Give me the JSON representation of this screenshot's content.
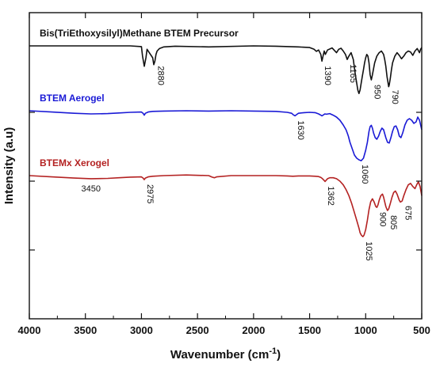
{
  "chart_data": {
    "type": "line",
    "xlabel": "Wavenumber (cm",
    "xlabel_sup": "-1",
    "xlabel_tail": ")",
    "ylabel": "Intensity (a.u)",
    "xlim": [
      4000,
      500
    ],
    "x_reversed": true,
    "xticks": [
      4000,
      3500,
      3000,
      2500,
      2000,
      1500,
      1000,
      500
    ],
    "grid": false,
    "series": [
      {
        "name": "Bis(TriEthoxysilyl)Methane BTEM Precursor",
        "color": "#111111",
        "x": [
          4000,
          3500,
          3100,
          3000,
          2990,
          2975,
          2960,
          2950,
          2930,
          2900,
          2890,
          2880,
          2870,
          2860,
          2840,
          2800,
          2700,
          2400,
          2000,
          1800,
          1600,
          1500,
          1460,
          1440,
          1420,
          1400,
          1390,
          1380,
          1370,
          1360,
          1340,
          1300,
          1260,
          1240,
          1220,
          1200,
          1180,
          1165,
          1150,
          1130,
          1110,
          1100,
          1090,
          1080,
          1070,
          1060,
          1050,
          1040,
          1030,
          1020,
          1010,
          1000,
          990,
          980,
          970,
          960,
          950,
          940,
          920,
          900,
          880,
          860,
          850,
          840,
          830,
          820,
          810,
          800,
          795,
          790,
          780,
          770,
          760,
          740,
          720,
          700,
          680,
          660,
          640,
          620,
          600,
          580,
          560,
          540,
          520,
          510,
          500
        ],
        "y": [
          0.0,
          0.0,
          0.0,
          0.2,
          3.0,
          6.0,
          3.5,
          1.0,
          2.0,
          3.5,
          5.5,
          4.5,
          2.5,
          1.5,
          0.8,
          0.3,
          0.1,
          0.3,
          0.0,
          0.1,
          0.3,
          0.5,
          1.0,
          1.6,
          1.2,
          2.5,
          4.5,
          3.0,
          1.5,
          2.5,
          1.2,
          0.6,
          2.0,
          1.0,
          0.7,
          1.5,
          2.5,
          4.0,
          3.0,
          2.0,
          4.0,
          6.5,
          9.0,
          11.0,
          13.0,
          14.0,
          13.0,
          11.0,
          9.0,
          7.0,
          5.0,
          3.5,
          2.5,
          3.0,
          5.0,
          8.5,
          10.0,
          8.5,
          5.0,
          3.0,
          2.0,
          1.5,
          2.0,
          2.5,
          4.0,
          6.0,
          9.0,
          11.0,
          12.0,
          11.5,
          9.5,
          7.0,
          5.0,
          3.0,
          2.0,
          2.8,
          3.8,
          3.0,
          2.0,
          1.5,
          1.8,
          2.8,
          1.5,
          0.8,
          2.0,
          1.0,
          0.5
        ]
      },
      {
        "name": "BTEM Aerogel",
        "color": "#1a1ad6",
        "x": [
          4000,
          3800,
          3600,
          3450,
          3300,
          3200,
          3100,
          3000,
          2985,
          2975,
          2965,
          2940,
          2900,
          2800,
          2600,
          2400,
          2200,
          2000,
          1800,
          1700,
          1660,
          1645,
          1630,
          1615,
          1600,
          1550,
          1500,
          1450,
          1420,
          1400,
          1390,
          1380,
          1365,
          1350,
          1320,
          1290,
          1260,
          1230,
          1200,
          1175,
          1165,
          1155,
          1140,
          1120,
          1100,
          1080,
          1060,
          1040,
          1020,
          1000,
          985,
          970,
          960,
          950,
          940,
          930,
          915,
          900,
          885,
          870,
          855,
          840,
          820,
          805,
          790,
          775,
          760,
          745,
          730,
          715,
          700,
          685,
          670,
          650,
          630,
          610,
          590,
          570,
          550,
          535,
          520,
          510,
          500
        ],
        "y": [
          0.0,
          0.4,
          0.8,
          1.0,
          0.9,
          0.7,
          0.5,
          0.4,
          0.8,
          1.4,
          0.8,
          0.4,
          0.2,
          0.1,
          0.0,
          0.1,
          0.0,
          0.1,
          0.2,
          0.5,
          0.8,
          1.3,
          1.6,
          1.2,
          0.8,
          0.6,
          0.5,
          0.6,
          1.0,
          1.4,
          1.6,
          1.4,
          1.0,
          1.1,
          0.9,
          1.4,
          2.0,
          3.0,
          4.5,
          6.0,
          7.0,
          8.0,
          10.0,
          12.0,
          14.0,
          15.0,
          15.5,
          15.8,
          15.0,
          12.5,
          10.0,
          6.5,
          5.0,
          4.6,
          5.5,
          7.0,
          8.5,
          9.0,
          8.0,
          6.5,
          5.5,
          6.0,
          8.5,
          10.0,
          10.2,
          8.5,
          6.5,
          5.0,
          4.8,
          6.0,
          8.0,
          8.5,
          7.0,
          4.5,
          3.0,
          2.5,
          3.0,
          4.0,
          3.5,
          2.0,
          3.0,
          4.5,
          6.0
        ]
      },
      {
        "name": "BTEMx Xerogel",
        "color": "#b42222",
        "x": [
          4000,
          3800,
          3600,
          3450,
          3300,
          3200,
          3100,
          3000,
          2985,
          2975,
          2965,
          2940,
          2900,
          2800,
          2600,
          2400,
          2370,
          2350,
          2330,
          2200,
          2000,
          1800,
          1700,
          1650,
          1600,
          1500,
          1450,
          1420,
          1400,
          1385,
          1370,
          1362,
          1355,
          1340,
          1320,
          1290,
          1260,
          1230,
          1200,
          1175,
          1150,
          1125,
          1100,
          1080,
          1060,
          1050,
          1040,
          1030,
          1025,
          1015,
          1000,
          985,
          970,
          955,
          940,
          925,
          910,
          900,
          890,
          880,
          865,
          850,
          840,
          830,
          820,
          810,
          805,
          795,
          780,
          765,
          750,
          735,
          720,
          710,
          700,
          690,
          675,
          660,
          640,
          620,
          600,
          580,
          560,
          545,
          530,
          515,
          505,
          500
        ],
        "y": [
          0.0,
          0.4,
          0.8,
          1.0,
          0.9,
          0.7,
          0.5,
          0.4,
          0.8,
          1.3,
          0.8,
          0.4,
          0.2,
          0.0,
          -0.2,
          0.0,
          0.5,
          0.7,
          0.4,
          0.0,
          0.0,
          0.0,
          0.1,
          0.2,
          0.1,
          0.1,
          0.2,
          0.3,
          0.6,
          1.0,
          1.6,
          1.9,
          1.6,
          1.0,
          0.7,
          0.7,
          1.0,
          1.8,
          3.0,
          4.5,
          6.5,
          9.0,
          12.0,
          14.5,
          17.0,
          18.5,
          19.2,
          19.6,
          19.8,
          19.3,
          17.5,
          14.5,
          11.0,
          8.5,
          7.5,
          8.5,
          10.0,
          10.3,
          9.5,
          8.0,
          6.5,
          6.0,
          7.0,
          8.5,
          10.0,
          11.0,
          11.3,
          10.8,
          9.0,
          7.0,
          5.5,
          5.0,
          6.0,
          7.0,
          8.0,
          8.6,
          8.2,
          6.5,
          4.5,
          3.0,
          2.5,
          3.5,
          4.2,
          3.0,
          2.0,
          3.5,
          5.5,
          6.5
        ]
      }
    ],
    "annotations": [
      {
        "text": "2880",
        "series": 0,
        "x": 2880,
        "rotate": true
      },
      {
        "text": "1390",
        "series": 0,
        "x": 1390,
        "rotate": true
      },
      {
        "text": "1165",
        "series": 0,
        "x": 1165,
        "rotate": true
      },
      {
        "text": "950",
        "series": 0,
        "x": 950,
        "rotate": true
      },
      {
        "text": "790",
        "series": 0,
        "x": 790,
        "rotate": true
      },
      {
        "text": "1630",
        "series": 1,
        "x": 1630,
        "rotate": true
      },
      {
        "text": "1060",
        "series": 1,
        "x": 1060,
        "rotate": true
      },
      {
        "text": "3450",
        "series": 2,
        "x": 3450,
        "rotate": false
      },
      {
        "text": "2975",
        "series": 2,
        "x": 2975,
        "rotate": true
      },
      {
        "text": "1362",
        "series": 2,
        "x": 1362,
        "rotate": true
      },
      {
        "text": "1025",
        "series": 2,
        "x": 1025,
        "rotate": true
      },
      {
        "text": "900",
        "series": 2,
        "x": 900,
        "rotate": true
      },
      {
        "text": "805",
        "series": 2,
        "x": 805,
        "rotate": true
      },
      {
        "text": "675",
        "series": 2,
        "x": 675,
        "rotate": true
      }
    ]
  }
}
